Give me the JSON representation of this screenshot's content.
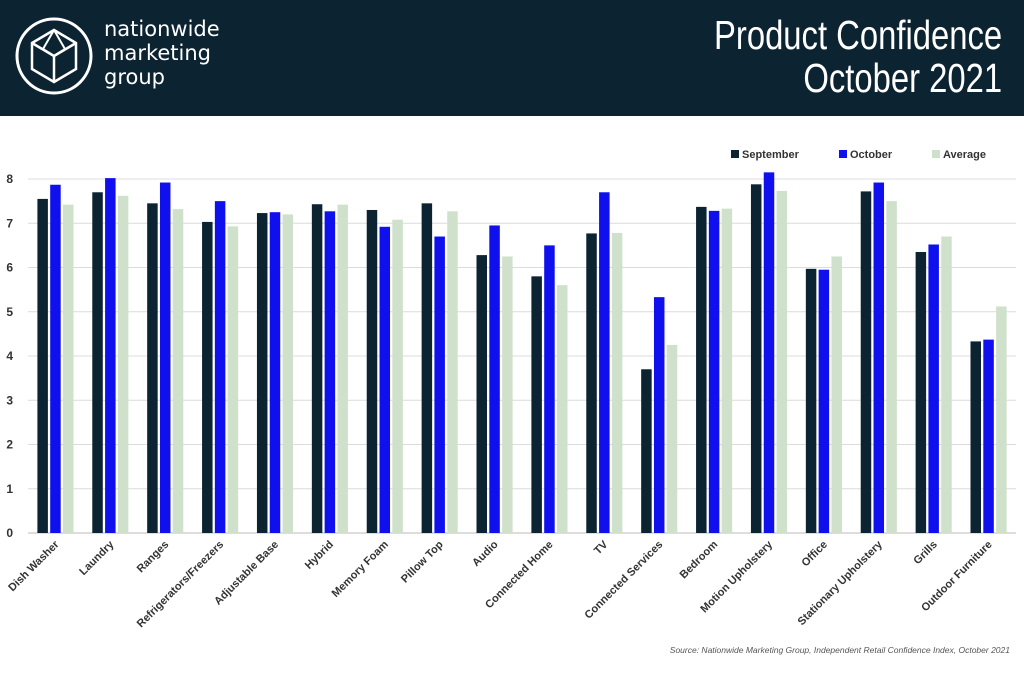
{
  "header": {
    "brand_lines": [
      "nationwide",
      "marketing",
      "group"
    ],
    "title_lines": [
      "Product Confidence",
      "October 2021"
    ],
    "background": "#0c2331"
  },
  "source_note": "Source: Nationwide Marketing Group, Independent Retail Confidence Index, October 2021",
  "chart_data": {
    "type": "bar",
    "title": "",
    "xlabel": "",
    "ylabel": "",
    "ylim": [
      0,
      8
    ],
    "yticks": [
      0,
      1,
      2,
      3,
      4,
      5,
      6,
      7,
      8
    ],
    "grid": true,
    "legend_position": "top-right",
    "categories": [
      "Dish Washer",
      "Laundry",
      "Ranges",
      "Refrigerators/Freezers",
      "Adjustable Base",
      "Hybrid",
      "Memory Foam",
      "Pillow Top",
      "Audio",
      "Connected Home",
      "TV",
      "Connected Services",
      "Bedroom",
      "Motion Upholstery",
      "Office",
      "Stationary Upholstery",
      "Grills",
      "Outdoor Furniture"
    ],
    "series": [
      {
        "name": "September",
        "color": "#0c2331",
        "values": [
          7.55,
          7.7,
          7.45,
          7.03,
          7.23,
          7.43,
          7.3,
          7.45,
          6.28,
          5.8,
          6.77,
          3.7,
          7.37,
          7.88,
          5.97,
          7.72,
          6.35,
          4.33
        ]
      },
      {
        "name": "October",
        "color": "#1010ee",
        "values": [
          7.87,
          8.02,
          7.92,
          7.5,
          7.25,
          7.27,
          6.92,
          6.7,
          6.95,
          6.5,
          7.7,
          5.33,
          7.28,
          8.15,
          5.95,
          7.92,
          6.52,
          4.37
        ]
      },
      {
        "name": "Average",
        "color": "#cfe1cb",
        "values": [
          7.42,
          7.62,
          7.32,
          6.93,
          7.2,
          7.42,
          7.08,
          7.27,
          6.25,
          5.6,
          6.78,
          4.25,
          7.33,
          7.73,
          6.25,
          7.5,
          6.7,
          5.12
        ]
      }
    ]
  }
}
